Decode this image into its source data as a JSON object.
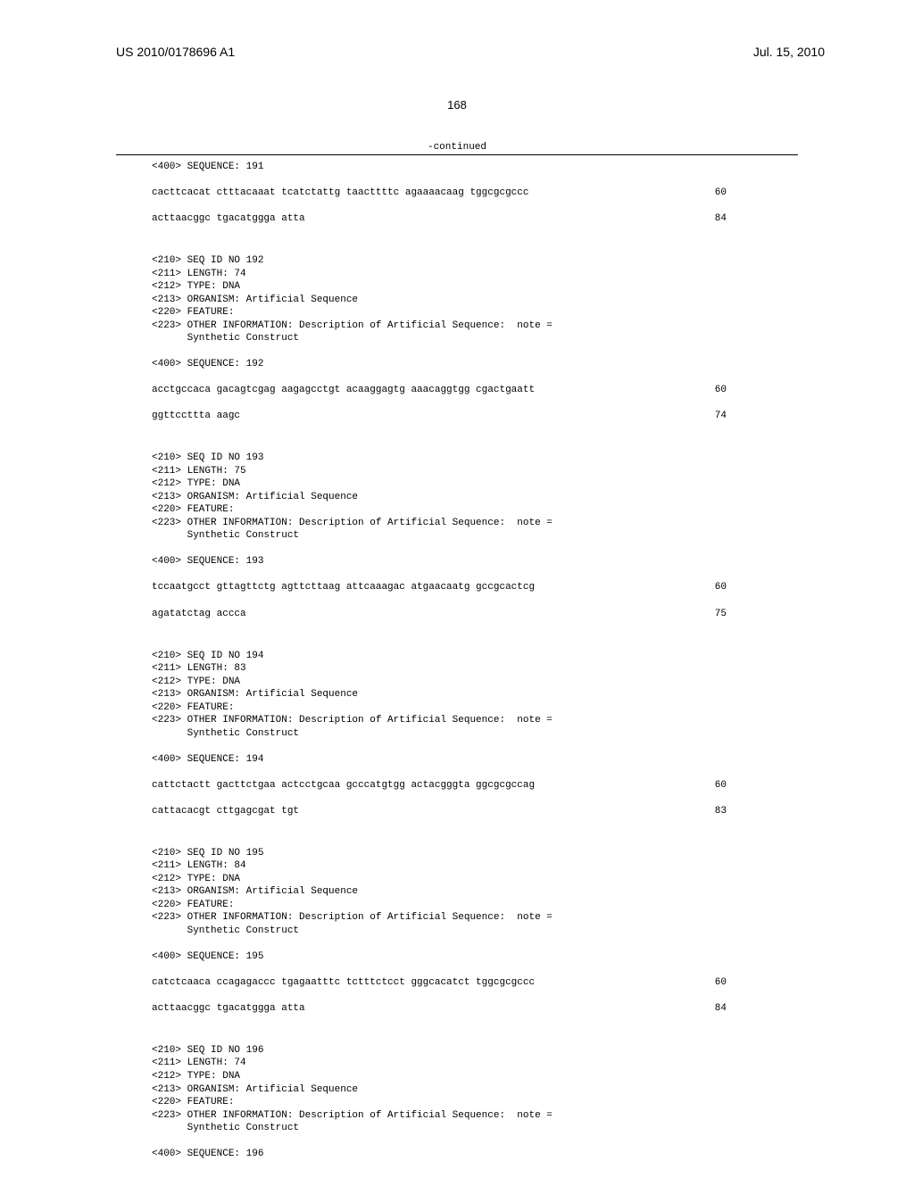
{
  "header": {
    "doc_id": "US 2010/0178696 A1",
    "date": "Jul. 15, 2010"
  },
  "page_number": "168",
  "continued_label": "-continued",
  "blocks": [
    {
      "header_lines": [
        "<400> SEQUENCE: 191"
      ],
      "seq_lines": [
        {
          "seq": "cacttcacat ctttacaaat tcatctattg taacttttc agaaaacaag tggcgcgccc",
          "pos": "60"
        },
        {
          "seq": "acttaacggc tgacatggga atta",
          "pos": "84"
        }
      ]
    },
    {
      "header_lines": [
        "<210> SEQ ID NO 192",
        "<211> LENGTH: 74",
        "<212> TYPE: DNA",
        "<213> ORGANISM: Artificial Sequence",
        "<220> FEATURE:",
        "<223> OTHER INFORMATION: Description of Artificial Sequence:  note =",
        "      Synthetic Construct",
        "",
        "<400> SEQUENCE: 192"
      ],
      "seq_lines": [
        {
          "seq": "acctgccaca gacagtcgag aagagcctgt acaaggagtg aaacaggtgg cgactgaatt",
          "pos": "60"
        },
        {
          "seq": "ggttccttta aagc",
          "pos": "74"
        }
      ]
    },
    {
      "header_lines": [
        "<210> SEQ ID NO 193",
        "<211> LENGTH: 75",
        "<212> TYPE: DNA",
        "<213> ORGANISM: Artificial Sequence",
        "<220> FEATURE:",
        "<223> OTHER INFORMATION: Description of Artificial Sequence:  note =",
        "      Synthetic Construct",
        "",
        "<400> SEQUENCE: 193"
      ],
      "seq_lines": [
        {
          "seq": "tccaatgcct gttagttctg agttcttaag attcaaagac atgaacaatg gccgcactcg",
          "pos": "60"
        },
        {
          "seq": "agatatctag accca",
          "pos": "75"
        }
      ]
    },
    {
      "header_lines": [
        "<210> SEQ ID NO 194",
        "<211> LENGTH: 83",
        "<212> TYPE: DNA",
        "<213> ORGANISM: Artificial Sequence",
        "<220> FEATURE:",
        "<223> OTHER INFORMATION: Description of Artificial Sequence:  note =",
        "      Synthetic Construct",
        "",
        "<400> SEQUENCE: 194"
      ],
      "seq_lines": [
        {
          "seq": "cattctactt gacttctgaa actcctgcaa gcccatgtgg actacgggta ggcgcgccag",
          "pos": "60"
        },
        {
          "seq": "cattacacgt cttgagcgat tgt",
          "pos": "83"
        }
      ]
    },
    {
      "header_lines": [
        "<210> SEQ ID NO 195",
        "<211> LENGTH: 84",
        "<212> TYPE: DNA",
        "<213> ORGANISM: Artificial Sequence",
        "<220> FEATURE:",
        "<223> OTHER INFORMATION: Description of Artificial Sequence:  note =",
        "      Synthetic Construct",
        "",
        "<400> SEQUENCE: 195"
      ],
      "seq_lines": [
        {
          "seq": "catctcaaca ccagagaccc tgagaatttc tctttctcct gggcacatct tggcgcgccc",
          "pos": "60"
        },
        {
          "seq": "acttaacggc tgacatggga atta",
          "pos": "84"
        }
      ]
    },
    {
      "header_lines": [
        "<210> SEQ ID NO 196",
        "<211> LENGTH: 74",
        "<212> TYPE: DNA",
        "<213> ORGANISM: Artificial Sequence",
        "<220> FEATURE:",
        "<223> OTHER INFORMATION: Description of Artificial Sequence:  note =",
        "      Synthetic Construct",
        "",
        "<400> SEQUENCE: 196"
      ],
      "seq_lines": []
    }
  ]
}
